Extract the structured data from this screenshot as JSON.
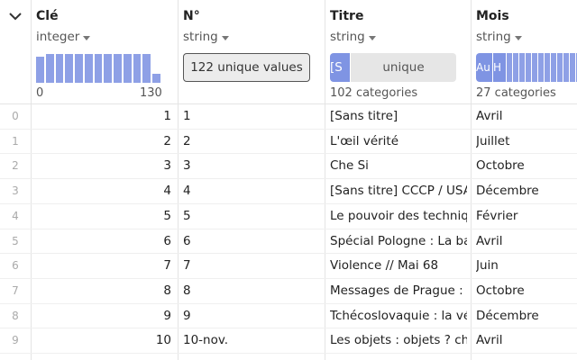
{
  "columns": [
    {
      "name": "Clé",
      "type": "integer",
      "histogram": {
        "counts": [
          9,
          10,
          10,
          10,
          10,
          10,
          10,
          10,
          10,
          10,
          10,
          10,
          3
        ],
        "xlim": [
          0,
          130
        ]
      }
    },
    {
      "name": "N°",
      "type": "string",
      "summary": "122 unique values"
    },
    {
      "name": "Titre",
      "type": "string",
      "bar_labels": [
        "[S",
        "unique"
      ],
      "footer": "102 categories"
    },
    {
      "name": "Mois",
      "type": "string",
      "bar_labels": [
        "Au",
        "H"
      ],
      "footer": "27 categories"
    }
  ],
  "rows": [
    [
      "0",
      1,
      "1",
      "[Sans titre]",
      "Avril"
    ],
    [
      "1",
      2,
      "2",
      "L'œil vérité",
      "Juillet"
    ],
    [
      "2",
      3,
      "3",
      "Che Si",
      "Octobre"
    ],
    [
      "3",
      4,
      "4",
      "[Sans titre] CCCP / USA",
      "Décembre"
    ],
    [
      "4",
      5,
      "5",
      "Le pouvoir des techniqu",
      "Février"
    ],
    [
      "5",
      6,
      "6",
      "Spécial Pologne : La bata",
      "Avril"
    ],
    [
      "6",
      7,
      "7",
      "Violence // Mai 68",
      "Juin"
    ],
    [
      "7",
      8,
      "8",
      "Messages de Prague : le",
      "Octobre"
    ],
    [
      "8",
      9,
      "9",
      "Tchécoslovaquie : la véri",
      "Décembre"
    ],
    [
      "9",
      10,
      "10-nov.",
      "Les objets : objets ? cho",
      "Avril"
    ]
  ]
}
